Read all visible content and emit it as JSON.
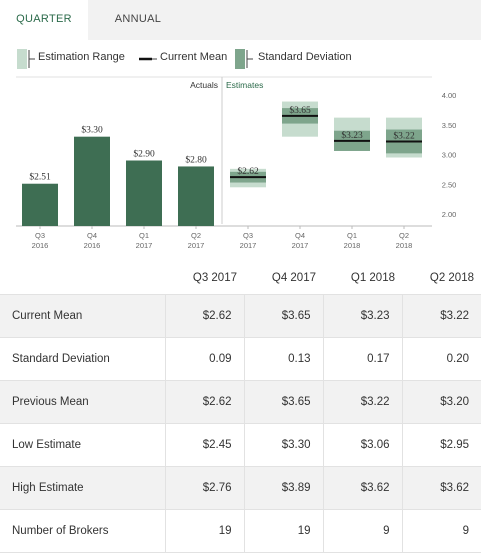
{
  "tabs": [
    {
      "label": "QUARTER",
      "active": true
    },
    {
      "label": "ANNUAL",
      "active": false
    }
  ],
  "legend": {
    "estimation_range": "Estimation Range",
    "current_mean": "Current Mean",
    "standard_deviation": "Standard Deviation"
  },
  "colors": {
    "actual_bar": "#3e6e53",
    "range_box": "#c6dcce",
    "std_box": "#7ea58c",
    "mean_line": "#111111",
    "active_tab": "#2b6a4a"
  },
  "chart_data": {
    "type": "bar",
    "section_labels": {
      "actuals": "Actuals",
      "estimates": "Estimates"
    },
    "categories": [
      {
        "top": "Q3",
        "bottom": "2016"
      },
      {
        "top": "Q4",
        "bottom": "2016"
      },
      {
        "top": "Q1",
        "bottom": "2017"
      },
      {
        "top": "Q2",
        "bottom": "2017"
      },
      {
        "top": "Q3",
        "bottom": "2017"
      },
      {
        "top": "Q4",
        "bottom": "2017"
      },
      {
        "top": "Q1",
        "bottom": "2018"
      },
      {
        "top": "Q2",
        "bottom": "2018"
      }
    ],
    "actuals": [
      {
        "value": 2.51,
        "label": "$2.51"
      },
      {
        "value": 3.3,
        "label": "$3.30"
      },
      {
        "value": 2.9,
        "label": "$2.90"
      },
      {
        "value": 2.8,
        "label": "$2.80"
      }
    ],
    "estimates": [
      {
        "mean": 2.62,
        "std": 0.09,
        "low": 2.45,
        "high": 2.76,
        "label": "$2.62"
      },
      {
        "mean": 3.65,
        "std": 0.13,
        "low": 3.3,
        "high": 3.89,
        "label": "$3.65"
      },
      {
        "mean": 3.23,
        "std": 0.17,
        "low": 3.06,
        "high": 3.62,
        "label": "$3.23"
      },
      {
        "mean": 3.22,
        "std": 0.2,
        "low": 2.95,
        "high": 3.62,
        "label": "$3.22"
      }
    ],
    "yaxis": {
      "ticks": [
        {
          "value": 4.0,
          "label": "4.00"
        },
        {
          "value": 3.5,
          "label": "3.50"
        },
        {
          "value": 3.0,
          "label": "3.00"
        },
        {
          "value": 2.5,
          "label": "2.50"
        },
        {
          "value": 2.0,
          "label": "2.00"
        }
      ],
      "ylim": [
        1.8,
        4.0
      ],
      "position": "right"
    },
    "grid": false
  },
  "table": {
    "columns": [
      "Q3 2017",
      "Q4 2017",
      "Q1 2018",
      "Q2 2018"
    ],
    "rows": [
      {
        "label": "Current Mean",
        "values": [
          "$2.62",
          "$3.65",
          "$3.23",
          "$3.22"
        ]
      },
      {
        "label": "Standard Deviation",
        "values": [
          "0.09",
          "0.13",
          "0.17",
          "0.20"
        ]
      },
      {
        "label": "Previous Mean",
        "values": [
          "$2.62",
          "$3.65",
          "$3.22",
          "$3.20"
        ]
      },
      {
        "label": "Low Estimate",
        "values": [
          "$2.45",
          "$3.30",
          "$3.06",
          "$2.95"
        ]
      },
      {
        "label": "High Estimate",
        "values": [
          "$2.76",
          "$3.89",
          "$3.62",
          "$3.62"
        ]
      },
      {
        "label": "Number of Brokers",
        "values": [
          "19",
          "19",
          "9",
          "9"
        ]
      }
    ]
  }
}
